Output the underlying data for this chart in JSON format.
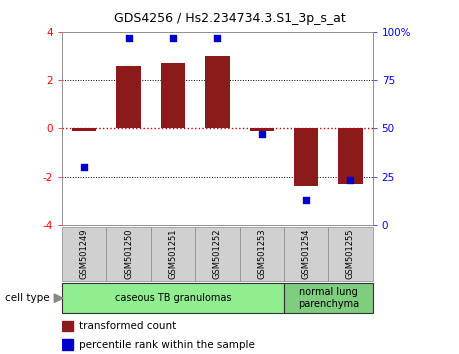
{
  "title": "GDS4256 / Hs2.234734.3.S1_3p_s_at",
  "samples": [
    "GSM501249",
    "GSM501250",
    "GSM501251",
    "GSM501252",
    "GSM501253",
    "GSM501254",
    "GSM501255"
  ],
  "transformed_count": [
    -0.1,
    2.6,
    2.7,
    3.0,
    -0.1,
    -2.4,
    -2.3
  ],
  "percentile_rank": [
    30,
    97,
    97,
    97,
    47,
    13,
    23
  ],
  "ylim_left": [
    -4,
    4
  ],
  "ylim_right": [
    0,
    100
  ],
  "bar_color": "#8B1A1A",
  "dot_color": "#0000CC",
  "dotted_line_color": "#CC0000",
  "right_ticks": [
    0,
    25,
    50,
    75,
    100
  ],
  "right_tick_labels": [
    "0",
    "25",
    "50",
    "75",
    "100%"
  ],
  "cell_groups": [
    {
      "label": "caseous TB granulomas",
      "samples": [
        0,
        1,
        2,
        3,
        4
      ],
      "color": "#90EE90"
    },
    {
      "label": "normal lung\nparenchyma",
      "samples": [
        5,
        6
      ],
      "color": "#7FCD7F"
    }
  ],
  "legend_items": [
    {
      "label": "transformed count",
      "color": "#8B1A1A"
    },
    {
      "label": "percentile rank within the sample",
      "color": "#0000CC"
    }
  ],
  "cell_type_label": "cell type",
  "sample_box_color": "#D0D0D0"
}
